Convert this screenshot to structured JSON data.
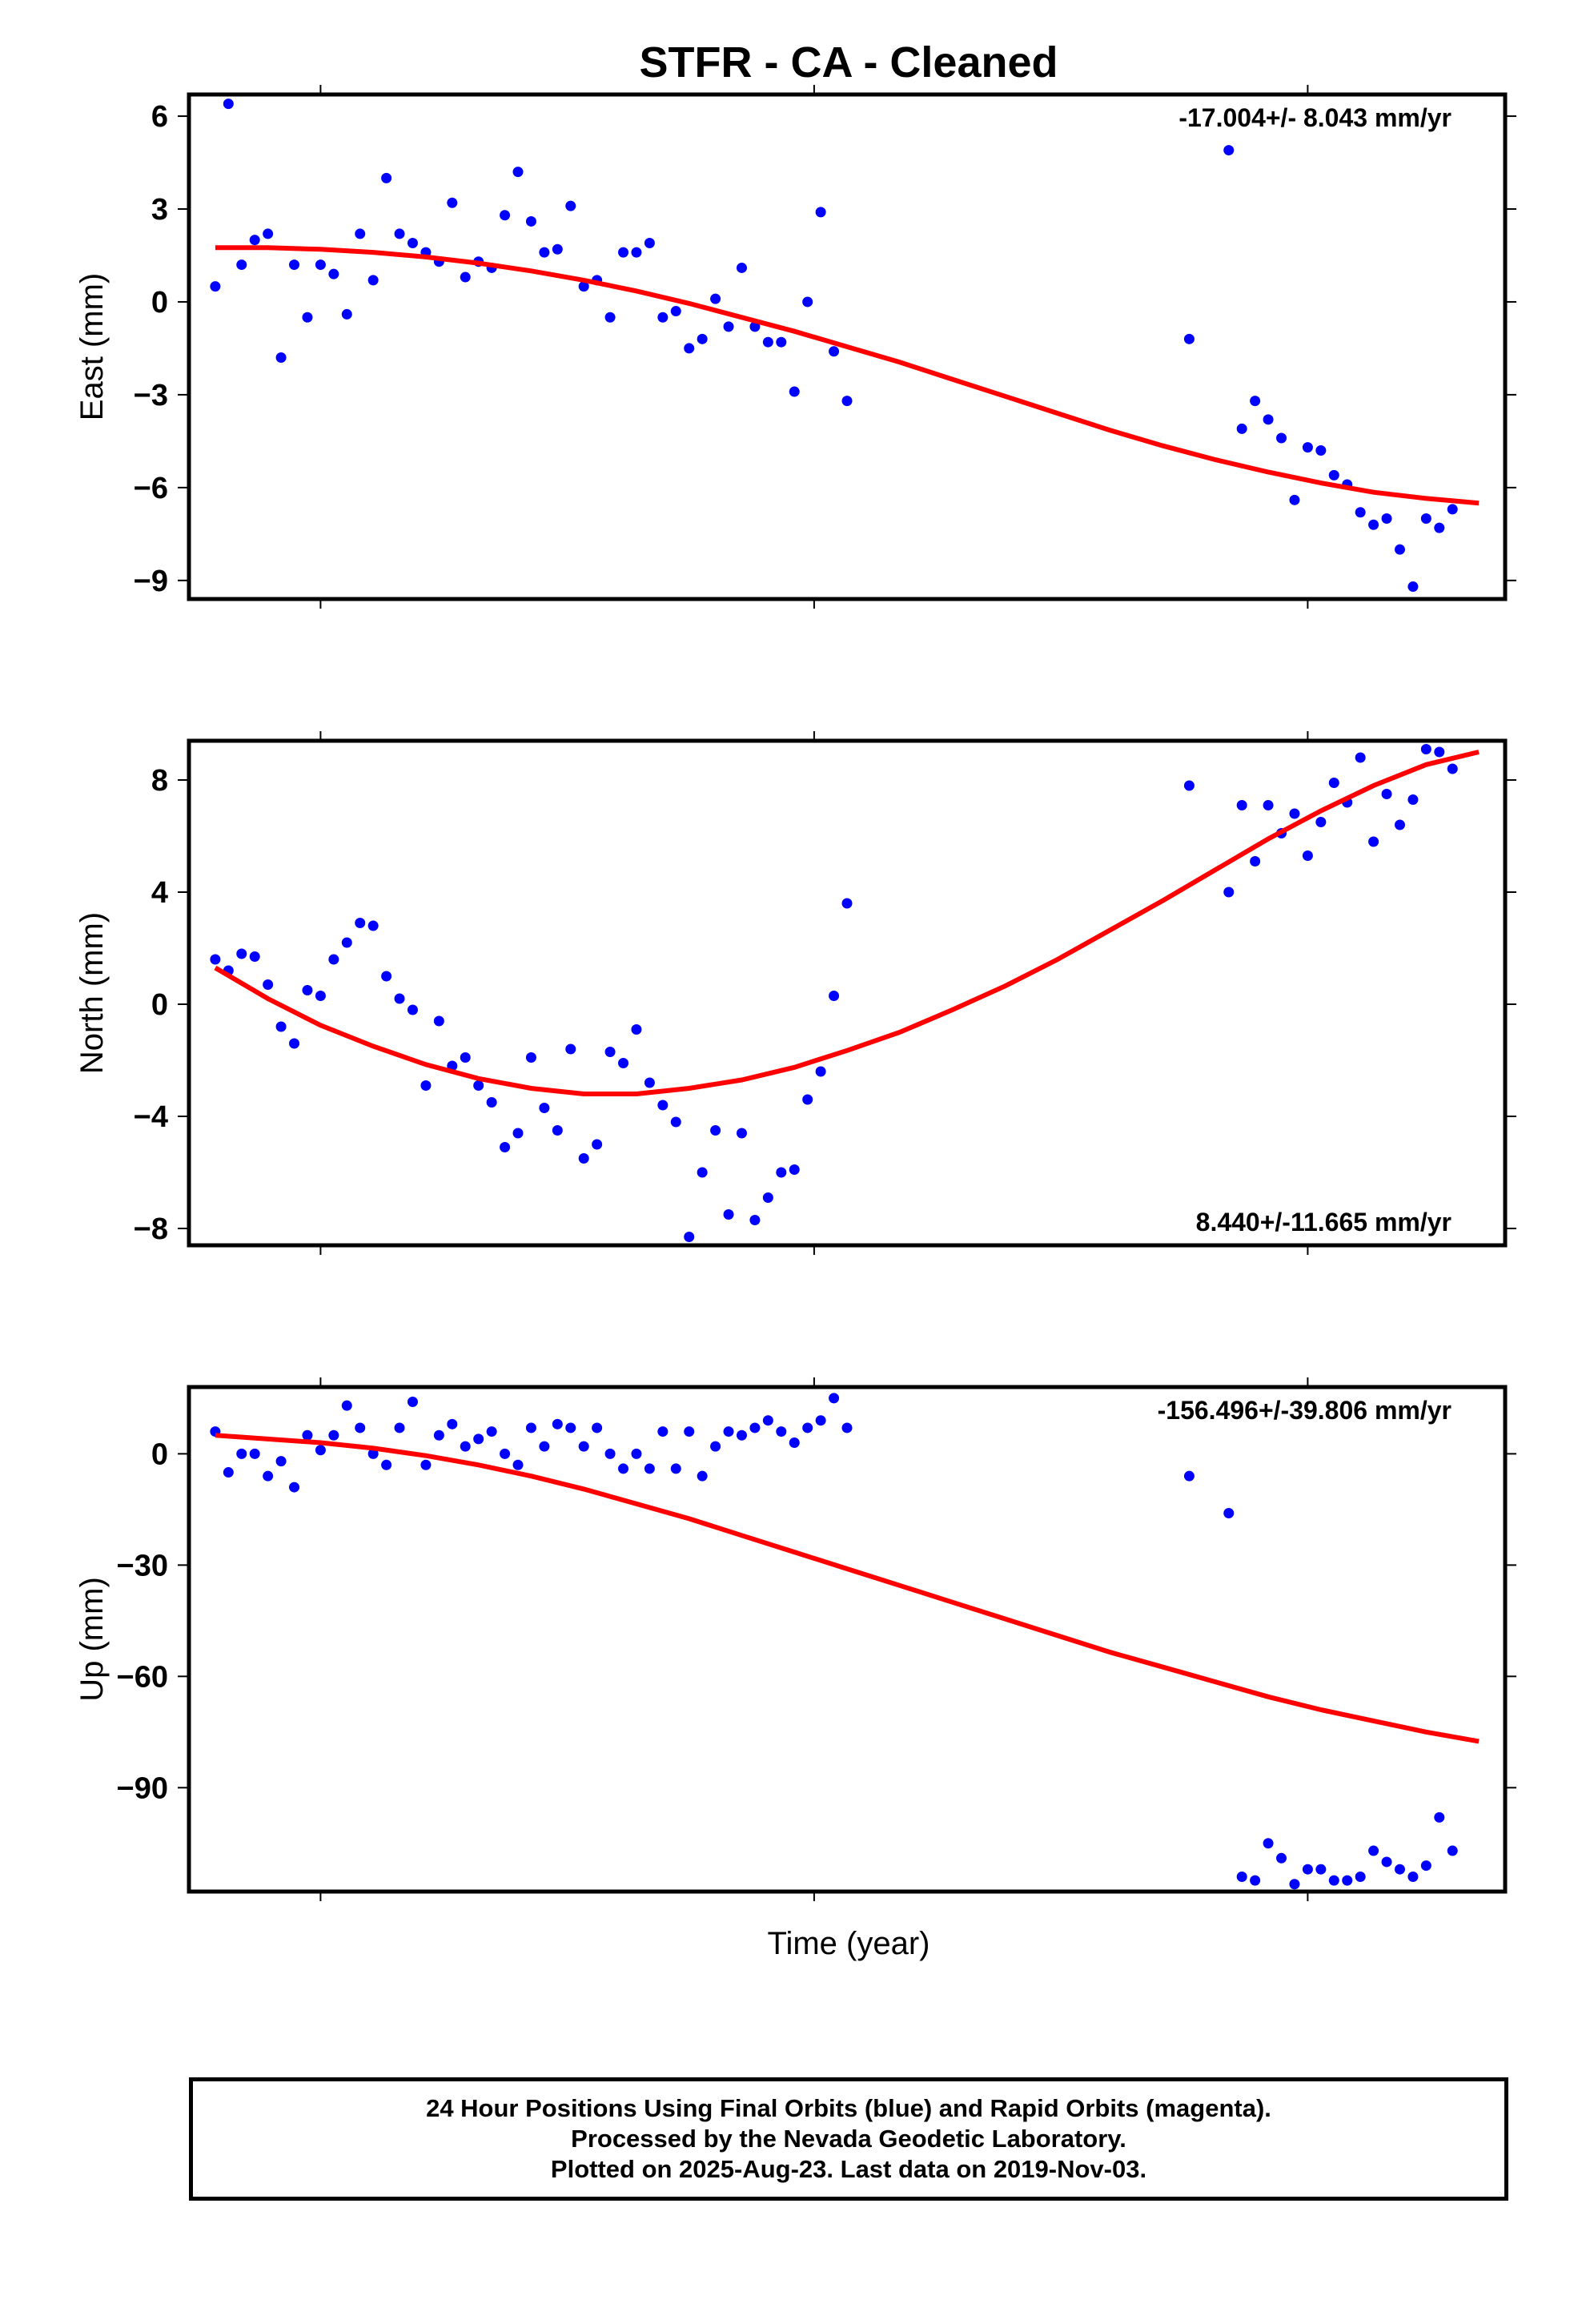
{
  "title": "STFR  - CA - Cleaned",
  "xlabel": "Time (year)",
  "caption": {
    "line1": "24 Hour Positions Using Final Orbits (blue) and Rapid Orbits (magenta).",
    "line2": "Processed by the Nevada Geodetic Laboratory.",
    "line3": "Plotted on 2025-Aug-23. Last data on 2019-Nov-03."
  },
  "colors": {
    "points": "#0000ff",
    "fit": "#ff0000"
  },
  "chart_data": [
    {
      "type": "scatter",
      "ylabel": "East (mm)",
      "rate_text": "-17.004+/- 8.043 mm/yr",
      "ylim": [
        -9.6,
        6.7
      ],
      "yticks": [
        6,
        3,
        0,
        -3,
        -6,
        -9
      ],
      "yticklabels": [
        "6",
        "3",
        "0",
        "−3",
        "−6",
        "−9"
      ],
      "x": [
        0.02,
        0.03,
        0.04,
        0.05,
        0.06,
        0.07,
        0.08,
        0.09,
        0.1,
        0.11,
        0.12,
        0.13,
        0.14,
        0.15,
        0.16,
        0.17,
        0.18,
        0.19,
        0.2,
        0.21,
        0.22,
        0.23,
        0.24,
        0.25,
        0.26,
        0.27,
        0.28,
        0.29,
        0.3,
        0.31,
        0.32,
        0.33,
        0.34,
        0.35,
        0.36,
        0.37,
        0.38,
        0.39,
        0.4,
        0.41,
        0.42,
        0.43,
        0.44,
        0.45,
        0.46,
        0.47,
        0.48,
        0.49,
        0.5,
        0.76,
        0.79,
        0.8,
        0.81,
        0.82,
        0.83,
        0.84,
        0.85,
        0.86,
        0.87,
        0.88,
        0.89,
        0.9,
        0.91,
        0.92,
        0.93,
        0.94,
        0.95,
        0.96
      ],
      "values": [
        0.5,
        6.4,
        1.2,
        2.0,
        2.2,
        -1.8,
        1.2,
        -0.5,
        1.2,
        0.9,
        -0.4,
        2.2,
        0.7,
        4.0,
        2.2,
        1.9,
        1.6,
        1.3,
        3.2,
        0.8,
        1.3,
        1.1,
        2.8,
        4.2,
        2.6,
        1.6,
        1.7,
        3.1,
        0.5,
        0.7,
        -0.5,
        1.6,
        1.6,
        1.9,
        -0.5,
        -0.3,
        -1.5,
        -1.2,
        0.1,
        -0.8,
        1.1,
        -0.8,
        -1.3,
        -1.3,
        -2.9,
        0.0,
        2.9,
        -1.6,
        -3.2,
        -1.2,
        4.9,
        -4.1,
        -3.2,
        -3.8,
        -4.4,
        -6.4,
        -4.7,
        -4.8,
        -5.6,
        -5.9,
        -6.8,
        -7.2,
        -7.0,
        -8.0,
        -9.2,
        -7.0,
        -7.3,
        -6.7
      ],
      "fit_x": [
        0.02,
        0.06,
        0.1,
        0.14,
        0.18,
        0.22,
        0.26,
        0.3,
        0.34,
        0.38,
        0.42,
        0.46,
        0.5,
        0.54,
        0.58,
        0.62,
        0.66,
        0.7,
        0.74,
        0.78,
        0.82,
        0.86,
        0.9,
        0.94,
        0.98
      ],
      "fit_values": [
        1.75,
        1.75,
        1.7,
        1.6,
        1.45,
        1.25,
        1.0,
        0.7,
        0.35,
        -0.05,
        -0.5,
        -0.95,
        -1.45,
        -1.95,
        -2.5,
        -3.05,
        -3.6,
        -4.15,
        -4.65,
        -5.1,
        -5.5,
        -5.85,
        -6.15,
        -6.35,
        -6.5
      ]
    },
    {
      "type": "scatter",
      "ylabel": "North (mm)",
      "rate_text": "8.440+/-11.665 mm/yr",
      "ylim": [
        -8.6,
        9.4
      ],
      "yticks": [
        8,
        4,
        0,
        -4,
        -8
      ],
      "yticklabels": [
        "8",
        "4",
        "0",
        "−4",
        "−8"
      ],
      "x": [
        0.02,
        0.03,
        0.04,
        0.05,
        0.06,
        0.07,
        0.08,
        0.09,
        0.1,
        0.11,
        0.12,
        0.13,
        0.14,
        0.15,
        0.16,
        0.17,
        0.18,
        0.19,
        0.2,
        0.21,
        0.22,
        0.23,
        0.24,
        0.25,
        0.26,
        0.27,
        0.28,
        0.29,
        0.3,
        0.31,
        0.32,
        0.33,
        0.34,
        0.35,
        0.36,
        0.37,
        0.38,
        0.39,
        0.4,
        0.41,
        0.42,
        0.43,
        0.44,
        0.45,
        0.46,
        0.47,
        0.48,
        0.49,
        0.5,
        0.76,
        0.79,
        0.8,
        0.81,
        0.82,
        0.83,
        0.84,
        0.85,
        0.86,
        0.87,
        0.88,
        0.89,
        0.9,
        0.91,
        0.92,
        0.93,
        0.94,
        0.95,
        0.96
      ],
      "values": [
        1.6,
        1.2,
        1.8,
        1.7,
        0.7,
        -0.8,
        -1.4,
        0.5,
        0.3,
        1.6,
        2.2,
        2.9,
        2.8,
        1.0,
        0.2,
        -0.2,
        -2.9,
        -0.6,
        -2.2,
        -1.9,
        -2.9,
        -3.5,
        -5.1,
        -4.6,
        -1.9,
        -3.7,
        -4.5,
        -1.6,
        -5.5,
        -5.0,
        -1.7,
        -2.1,
        -0.9,
        -2.8,
        -3.6,
        -4.2,
        -8.3,
        -6.0,
        -4.5,
        -7.5,
        -4.6,
        -7.7,
        -6.9,
        -6.0,
        -5.9,
        -3.4,
        -2.4,
        0.3,
        3.6,
        7.8,
        4.0,
        7.1,
        5.1,
        7.1,
        6.1,
        6.8,
        5.3,
        6.5,
        7.9,
        7.2,
        8.8,
        5.8,
        7.5,
        6.4,
        7.3,
        9.1,
        9.0,
        8.4
      ],
      "fit_x": [
        0.02,
        0.06,
        0.1,
        0.14,
        0.18,
        0.22,
        0.26,
        0.3,
        0.34,
        0.38,
        0.42,
        0.46,
        0.5,
        0.54,
        0.58,
        0.62,
        0.66,
        0.7,
        0.74,
        0.78,
        0.82,
        0.86,
        0.9,
        0.94,
        0.98
      ],
      "fit_values": [
        1.3,
        0.2,
        -0.75,
        -1.5,
        -2.15,
        -2.65,
        -3.0,
        -3.2,
        -3.2,
        -3.0,
        -2.7,
        -2.25,
        -1.65,
        -1.0,
        -0.2,
        0.65,
        1.6,
        2.65,
        3.7,
        4.8,
        5.9,
        6.9,
        7.8,
        8.55,
        9.0
      ]
    },
    {
      "type": "scatter",
      "ylabel": "Up (mm)",
      "rate_text": "-156.496+/-39.806 mm/yr",
      "ylim": [
        -118,
        18
      ],
      "yticks": [
        0,
        -30,
        -60,
        -90
      ],
      "yticklabels": [
        "0",
        "−30",
        "−60",
        "−90"
      ],
      "x": [
        0.02,
        0.03,
        0.04,
        0.05,
        0.06,
        0.07,
        0.08,
        0.09,
        0.1,
        0.11,
        0.12,
        0.13,
        0.14,
        0.15,
        0.16,
        0.17,
        0.18,
        0.19,
        0.2,
        0.21,
        0.22,
        0.23,
        0.24,
        0.25,
        0.26,
        0.27,
        0.28,
        0.29,
        0.3,
        0.31,
        0.32,
        0.33,
        0.34,
        0.35,
        0.36,
        0.37,
        0.38,
        0.39,
        0.4,
        0.41,
        0.42,
        0.43,
        0.44,
        0.45,
        0.46,
        0.47,
        0.48,
        0.49,
        0.5,
        0.76,
        0.79,
        0.8,
        0.81,
        0.82,
        0.83,
        0.84,
        0.85,
        0.86,
        0.87,
        0.88,
        0.89,
        0.9,
        0.91,
        0.92,
        0.93,
        0.94,
        0.95,
        0.96
      ],
      "values": [
        6,
        -5,
        0,
        0,
        -6,
        -2,
        -9,
        5,
        1,
        5,
        13,
        7,
        0,
        -3,
        7,
        14,
        -3,
        5,
        8,
        2,
        4,
        6,
        0,
        -3,
        7,
        2,
        8,
        7,
        2,
        7,
        0,
        -4,
        0,
        -4,
        6,
        -4,
        6,
        -6,
        2,
        6,
        5,
        7,
        9,
        6,
        3,
        7,
        9,
        15,
        7,
        -6,
        -16,
        -114,
        -115,
        -105,
        -109,
        -116,
        -112,
        -112,
        -115,
        -115,
        -114,
        -107,
        -110,
        -112,
        -114,
        -111,
        -98,
        -107
      ],
      "fit_x": [
        0.02,
        0.06,
        0.1,
        0.14,
        0.18,
        0.22,
        0.26,
        0.3,
        0.34,
        0.38,
        0.42,
        0.46,
        0.5,
        0.54,
        0.58,
        0.62,
        0.66,
        0.7,
        0.74,
        0.78,
        0.82,
        0.86,
        0.9,
        0.94,
        0.98
      ],
      "fit_values": [
        5,
        4,
        3,
        1.5,
        -0.5,
        -3,
        -6,
        -9.5,
        -13.5,
        -17.5,
        -22,
        -26.5,
        -31,
        -35.5,
        -40,
        -44.5,
        -49,
        -53.5,
        -57.5,
        -61.5,
        -65.5,
        -69,
        -72,
        -75,
        -77.5
      ]
    }
  ]
}
